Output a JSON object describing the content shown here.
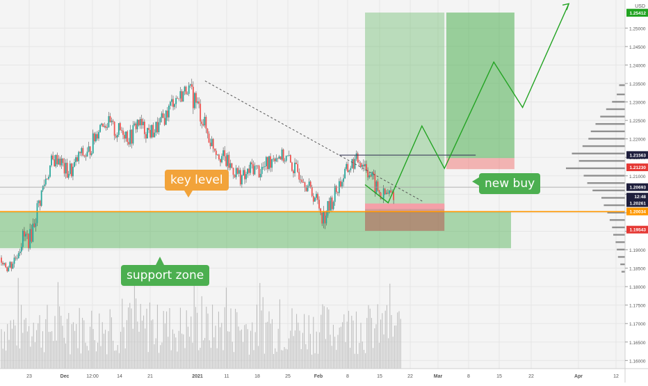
{
  "chart_data": {
    "type": "candlestick",
    "currency": "USD",
    "colors": {
      "up": "#26a69a",
      "down": "#ef5350",
      "key_level": "#ff9800",
      "zone": "#4caf50",
      "projection": "#22a322",
      "resistance": "#3c3c5a",
      "trend": "#555555"
    },
    "x_ticks": [
      "23",
      "Dec",
      "12:00",
      "14",
      "21",
      "2021",
      "11",
      "18",
      "25",
      "Feb",
      "8",
      "15",
      "22",
      "Mar",
      "8",
      "15",
      "22",
      "Apr",
      "12"
    ],
    "y_ticks": [
      "1.25000",
      "1.24500",
      "1.24000",
      "1.23500",
      "1.23000",
      "1.22500",
      "1.22000",
      "1.21500",
      "1.21000",
      "1.20500",
      "1.20000",
      "1.19500",
      "1.19000",
      "1.18500",
      "1.18000",
      "1.17500",
      "1.17000",
      "1.16500",
      "1.16000"
    ],
    "ylim": [
      1.1578,
      1.2576
    ],
    "price_labels": [
      {
        "value": 1.25418,
        "text": "1.25418",
        "color": "#22a322"
      },
      {
        "value": 1.25412,
        "text": "1.25412",
        "color": "#22a322"
      },
      {
        "value": 1.21563,
        "text": "1.21563",
        "color": "#1e1e3c"
      },
      {
        "value": 1.2123,
        "text": "1.21230",
        "color": "#e53935"
      },
      {
        "value": 1.20693,
        "text": "1.20693",
        "color": "#1e1e3c"
      },
      {
        "value": 1.20436,
        "text": "12:48",
        "color": "#1e1e3c"
      },
      {
        "value": 1.20261,
        "text": "1.20261",
        "color": "#1e1e3c"
      },
      {
        "value": 1.20034,
        "text": "1.20034",
        "color": "#ff9800"
      },
      {
        "value": 1.19543,
        "text": "1.19543",
        "color": "#e53935"
      }
    ],
    "levels": {
      "key_level": 1.2003,
      "last_price": 1.20693,
      "support_zone": [
        1.1904,
        1.2003
      ]
    },
    "annotations": {
      "key_level": "key level",
      "support_zone": "support zone",
      "new_buy": "new buy"
    },
    "trades": [
      {
        "x_from": 0.584,
        "x_to": 0.711,
        "entry": 1.2022,
        "stop": 1.1951,
        "target": 1.2542
      },
      {
        "x_from": 0.714,
        "x_to": 0.823,
        "entry": 1.2148,
        "stop": 1.2118,
        "target": 1.2542
      }
    ],
    "projection_path": [
      [
        0.584,
        1.2076
      ],
      [
        0.621,
        1.2027
      ],
      [
        0.675,
        1.2235
      ],
      [
        0.711,
        1.212
      ],
      [
        0.79,
        1.2408
      ],
      [
        0.836,
        1.2285
      ],
      [
        0.91,
        1.2566
      ]
    ],
    "trend_line": [
      [
        0.328,
        1.2357
      ],
      [
        0.677,
        1.203
      ]
    ],
    "resistance_line": [
      [
        0.543,
        1.2156
      ],
      [
        0.761,
        1.2156
      ]
    ],
    "lows": [
      1.1862,
      1.1825,
      1.186,
      1.1905,
      1.19,
      1.1978,
      1.205,
      1.211,
      1.2128,
      1.208,
      1.209,
      1.214,
      1.213,
      1.2175,
      1.223,
      1.2215,
      1.219,
      1.22,
      1.217,
      1.2225,
      1.22,
      1.219,
      1.221,
      1.224,
      1.228,
      1.229,
      1.232,
      1.2268,
      1.223,
      1.2175,
      1.2148,
      1.212,
      1.21,
      1.208,
      1.2065,
      1.21,
      1.2088,
      1.2095,
      1.213,
      1.2135,
      1.212,
      1.209,
      1.208,
      1.204,
      1.2015,
      1.1955,
      1.1995,
      1.204,
      1.208,
      1.211,
      1.212,
      1.2095,
      1.205,
      1.202,
      1.2026
    ],
    "highs": [
      1.1895,
      1.188,
      1.19,
      1.196,
      1.196,
      1.204,
      1.211,
      1.216,
      1.217,
      1.214,
      1.2145,
      1.218,
      1.218,
      1.223,
      1.226,
      1.2265,
      1.2245,
      1.225,
      1.223,
      1.227,
      1.225,
      1.2245,
      1.226,
      1.229,
      1.233,
      1.234,
      1.2357,
      1.2345,
      1.229,
      1.223,
      1.2195,
      1.2175,
      1.215,
      1.213,
      1.212,
      1.215,
      1.214,
      1.2155,
      1.218,
      1.2175,
      1.217,
      1.214,
      1.213,
      1.209,
      1.206,
      1.202,
      1.205,
      1.21,
      1.213,
      1.2155,
      1.217,
      1.216,
      1.211,
      1.207,
      1.2075
    ],
    "volume_profile": [
      {
        "price": 1.2345,
        "size": 0.1
      },
      {
        "price": 1.232,
        "size": 0.14
      },
      {
        "price": 1.23,
        "size": 0.22
      },
      {
        "price": 1.228,
        "size": 0.32
      },
      {
        "price": 1.226,
        "size": 0.42
      },
      {
        "price": 1.224,
        "size": 0.5
      },
      {
        "price": 1.222,
        "size": 0.58
      },
      {
        "price": 1.22,
        "size": 0.62
      },
      {
        "price": 1.218,
        "size": 0.72
      },
      {
        "price": 1.216,
        "size": 0.9
      },
      {
        "price": 1.214,
        "size": 0.78
      },
      {
        "price": 1.212,
        "size": 1.0
      },
      {
        "price": 1.21,
        "size": 0.7
      },
      {
        "price": 1.208,
        "size": 0.64
      },
      {
        "price": 1.206,
        "size": 0.55
      },
      {
        "price": 1.204,
        "size": 0.4
      },
      {
        "price": 1.202,
        "size": 0.36
      },
      {
        "price": 1.2,
        "size": 0.3
      },
      {
        "price": 1.198,
        "size": 0.26
      },
      {
        "price": 1.196,
        "size": 0.22
      },
      {
        "price": 1.194,
        "size": 0.2
      },
      {
        "price": 1.192,
        "size": 0.16
      },
      {
        "price": 1.19,
        "size": 0.14
      },
      {
        "price": 1.188,
        "size": 0.12
      },
      {
        "price": 1.186,
        "size": 0.08
      },
      {
        "price": 1.184,
        "size": 0.06
      }
    ]
  }
}
